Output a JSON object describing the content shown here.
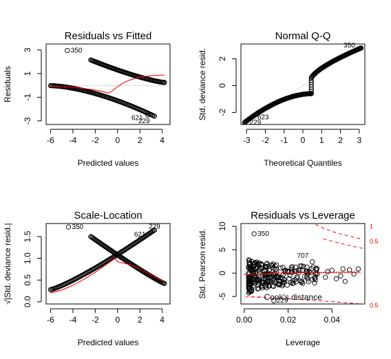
{
  "chart_data": [
    {
      "type": "scatter",
      "title": "Residuals vs Fitted",
      "xlabel": "Predicted values",
      "ylabel": "Residuals",
      "xlim": [
        -6.4,
        4.7
      ],
      "ylim": [
        -3.3,
        3.5
      ],
      "xticks": [
        -6,
        -4,
        -2,
        0,
        2,
        4
      ],
      "yticks": [
        -3,
        -1,
        1,
        3
      ],
      "reference_line": {
        "y": 0,
        "style": "dotted"
      },
      "upper_branch": {
        "x_from": -2.4,
        "x_to": 4.2,
        "y_at_start": 2.15,
        "y_at_end": 0.25,
        "count": 90
      },
      "lower_branch": {
        "x_from": -6.0,
        "x_to": 3.3,
        "y_at_start": -0.02,
        "y_at_end": -2.6,
        "count": 110
      },
      "isolated_points": [
        {
          "x": -4.5,
          "y": 2.95
        },
        {
          "x": 2.7,
          "y": -2.5
        }
      ],
      "smooth": {
        "x": [
          -6.0,
          -5.0,
          -4.0,
          -3.0,
          -2.0,
          -1.2,
          -0.8,
          -0.4,
          0.0,
          0.5,
          1.0,
          1.5,
          2.0,
          3.0,
          4.2
        ],
        "y": [
          -0.05,
          -0.1,
          -0.15,
          -0.25,
          -0.4,
          -0.55,
          -0.65,
          -0.4,
          -0.1,
          0.2,
          0.42,
          0.58,
          0.7,
          0.82,
          0.88
        ]
      },
      "annotations": [
        {
          "label": "350",
          "x": -4.5,
          "y": 2.95
        },
        {
          "label": "621",
          "x": 2.1,
          "y": -2.4
        },
        {
          "label": "229",
          "x": 2.6,
          "y": -2.65
        }
      ]
    },
    {
      "type": "scatter",
      "title": "Normal Q-Q",
      "xlabel": "Theoretical Quantiles",
      "ylabel": "Std. deviance resid.",
      "xlim": [
        -3.3,
        3.3
      ],
      "ylim": [
        -2.9,
        3.1
      ],
      "xticks": [
        -3,
        -2,
        -1,
        0,
        1,
        2,
        3
      ],
      "yticks": [
        -2,
        0,
        2
      ],
      "reference_line": {
        "from": [
          -3.3,
          -3.3
        ],
        "to": [
          3.3,
          3.3
        ],
        "style": "dotted"
      },
      "points_shape": {
        "x_from": -3.1,
        "x_to": 3.1,
        "jump_at_x": 0.45,
        "y_before_jump": -0.6,
        "y_after_jump": 0.55,
        "y_at_start": -2.75,
        "y_at_end": 2.8,
        "count": 220
      },
      "annotations": [
        {
          "label": "350",
          "x": 2.9,
          "y": 2.8
        },
        {
          "label": "229",
          "x": -2.95,
          "y": -2.7
        },
        {
          "label": "623",
          "x": -2.5,
          "y": -2.3
        }
      ]
    },
    {
      "type": "scatter",
      "title": "Scale-Location",
      "xlabel": "Predicted values",
      "ylabel": "√|Std. deviance resid.|",
      "xlim": [
        -6.4,
        4.7
      ],
      "ylim": [
        -0.05,
        1.8
      ],
      "xticks": [
        -6,
        -4,
        -2,
        0,
        2,
        4
      ],
      "yticks": [
        0.0,
        0.5,
        1.0,
        1.5
      ],
      "ytick_labels": [
        "0.0",
        "0.5",
        "1.0",
        "1.5"
      ],
      "rising_branch": {
        "x_from": -6.0,
        "x_to": 3.3,
        "y_at_start": 0.28,
        "y_at_end": 1.65,
        "count": 110
      },
      "falling_branch": {
        "x_from": -2.4,
        "x_to": 4.2,
        "y_at_start": 1.5,
        "y_at_end": 0.42,
        "count": 90
      },
      "isolated_points": [
        {
          "x": -4.4,
          "y": 1.72
        },
        {
          "x": 3.3,
          "y": 1.65
        }
      ],
      "smooth": {
        "x": [
          -6.0,
          -5.0,
          -4.0,
          -3.0,
          -2.0,
          -1.0,
          -0.2,
          0.0,
          1.0,
          2.0,
          3.0,
          4.2
        ],
        "y": [
          0.2,
          0.27,
          0.38,
          0.52,
          0.68,
          0.86,
          1.0,
          0.92,
          0.86,
          0.76,
          0.62,
          0.46
        ]
      },
      "annotations": [
        {
          "label": "350",
          "x": -4.4,
          "y": 1.72
        },
        {
          "label": "229",
          "x": 2.8,
          "y": 1.65
        },
        {
          "label": "621",
          "x": 2.1,
          "y": 1.55
        }
      ]
    },
    {
      "type": "scatter",
      "title": "Residuals vs Leverage",
      "xlabel": "Leverage",
      "ylabel": "Std. Pearson resid.",
      "xlim": [
        -0.0015,
        0.055
      ],
      "ylim": [
        -6.6,
        10.6
      ],
      "xticks": [
        0.0,
        0.02,
        0.04
      ],
      "xtick_labels": [
        "0.00",
        "0.02",
        "0.04"
      ],
      "yticks": [
        -5,
        0,
        5,
        10
      ],
      "reference_lines": [
        {
          "x": 0,
          "style": "dotted"
        },
        {
          "y": 0,
          "style": "dotted"
        }
      ],
      "cluster": {
        "leverage_from": 0.002,
        "leverage_to": 0.035,
        "resid_from": -4.5,
        "resid_to": 3.0,
        "count": 260
      },
      "isolated_points": [
        {
          "x": 0.0045,
          "y": 8.4
        },
        {
          "x": 0.031,
          "y": 2.4
        },
        {
          "x": 0.0135,
          "y": -5.9
        }
      ],
      "sparse_points": [
        {
          "x": 0.04,
          "y": 0.6
        },
        {
          "x": 0.042,
          "y": -1.2
        },
        {
          "x": 0.045,
          "y": 0.9
        },
        {
          "x": 0.048,
          "y": 0.7
        },
        {
          "x": 0.052,
          "y": 0.9
        },
        {
          "x": 0.046,
          "y": -1.8
        },
        {
          "x": 0.044,
          "y": -0.6
        },
        {
          "x": 0.05,
          "y": -0.2
        },
        {
          "x": 0.038,
          "y": 0.3
        },
        {
          "x": 0.037,
          "y": -0.9
        }
      ],
      "smooth": {
        "x": [
          0.0,
          0.005,
          0.01,
          0.02,
          0.03,
          0.04,
          0.053
        ],
        "y": [
          -0.3,
          -0.25,
          -0.1,
          0.05,
          0.1,
          0.15,
          0.2
        ]
      },
      "cooks_contours": [
        {
          "level": "1",
          "x": [
            0.03,
            0.036,
            0.042,
            0.048,
            0.054
          ],
          "y": [
            11.0,
            9.6,
            8.6,
            7.9,
            7.2
          ]
        },
        {
          "level": "0.5",
          "x": [
            0.036,
            0.042,
            0.048,
            0.054
          ],
          "y": [
            7.3,
            6.6,
            5.9,
            5.3
          ]
        },
        {
          "level": "0.5",
          "x": [
            0.003,
            0.01,
            0.02,
            0.03,
            0.04,
            0.054
          ],
          "y": [
            -5.1,
            -5.25,
            -5.5,
            -5.8,
            -6.1,
            -6.6
          ]
        }
      ],
      "contour_labels": [
        {
          "label": "1",
          "y": 10.0
        },
        {
          "label": "0.5",
          "y": 6.8
        },
        {
          "label": "0.5",
          "y": -6.9
        }
      ],
      "legend": {
        "label": "Cook's distance",
        "placement": "bottom-left"
      },
      "annotations": [
        {
          "label": "350",
          "x": 0.0045,
          "y": 8.4
        },
        {
          "label": "707",
          "x": 0.031,
          "y": 2.4
        },
        {
          "label": "229",
          "x": 0.0135,
          "y": -5.9
        }
      ]
    }
  ]
}
